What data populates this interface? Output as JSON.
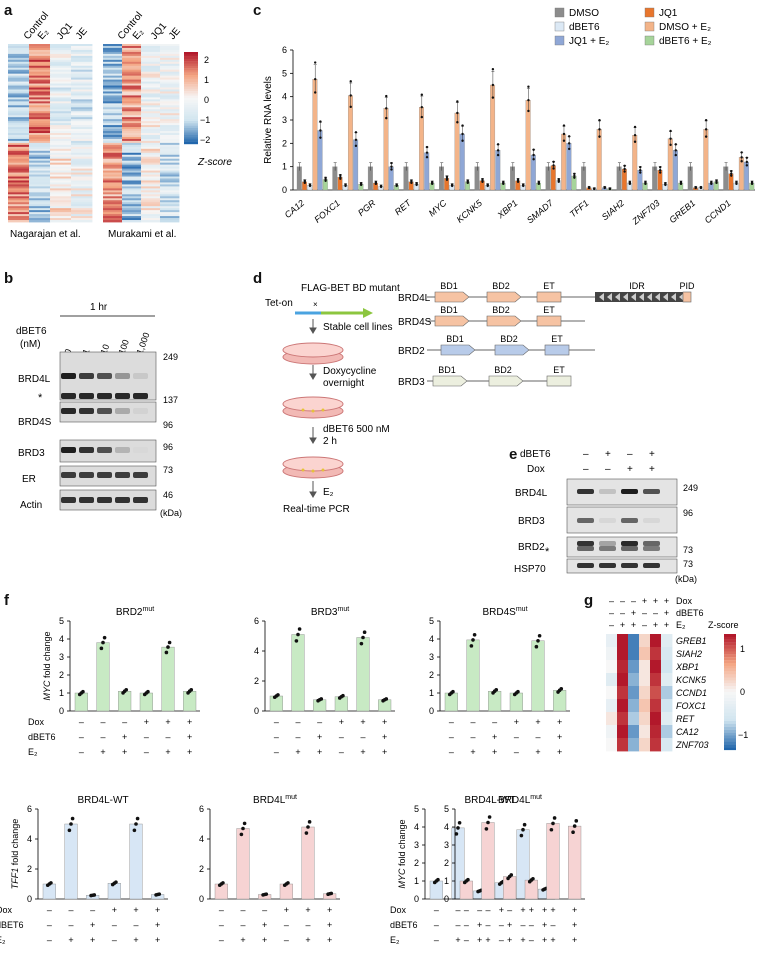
{
  "panels": {
    "a": "a",
    "b": "b",
    "c": "c",
    "d": "d",
    "e": "e",
    "f": "f",
    "g": "g"
  },
  "panel_a": {
    "left_cols": [
      "Control",
      "E₂",
      "JQ1",
      "JE"
    ],
    "right_cols": [
      "Control",
      "E₂",
      "JQ1",
      "JE"
    ],
    "left_caption": "Nagarajan et al.",
    "right_caption": "Murakami et al.",
    "colorbar_ticks": [
      "2",
      "1",
      "0",
      "−1",
      "−2"
    ],
    "colorbar_title": "Z-score"
  },
  "panel_b": {
    "time": "1 hr",
    "treatment": "dBET6",
    "unit": "(nM)",
    "doses": [
      "0",
      "1",
      "10",
      "100",
      "1,000"
    ],
    "rows": [
      "BRD4L",
      "*",
      "BRD4S",
      "BRD3",
      "ER",
      "Actin"
    ],
    "markers": [
      "249",
      "137",
      "96",
      "96",
      "73",
      "46"
    ],
    "kda": "(kDa)"
  },
  "panel_c": {
    "legend": [
      "DMSO",
      "JQ1",
      "dBET6",
      "DMSO + E₂",
      "JQ1 + E₂",
      "dBET6 + E₂"
    ],
    "colors": [
      "#8c8c8c",
      "#e8762d",
      "#dce9f5",
      "#f3b489",
      "#8fa7d6",
      "#a6d49a"
    ]
  },
  "chart_data": [
    {
      "type": "bar",
      "panel": "c",
      "ylabel": "Relative RNA levels",
      "ylim": [
        0,
        6
      ],
      "yticks": [
        "0",
        "1",
        "2",
        "3",
        "4",
        "5",
        "6"
      ],
      "categories": [
        "CA12",
        "FOXC1",
        "PGR",
        "RET",
        "MYC",
        "KCNK5",
        "XBP1",
        "SMAD7",
        "TFF1",
        "SIAH2",
        "ZNF703",
        "GREB1",
        "CCND1"
      ],
      "series": [
        {
          "name": "DMSO",
          "values": [
            1,
            1,
            1,
            1,
            1,
            1,
            1,
            1,
            1,
            1,
            1,
            1,
            1
          ]
        },
        {
          "name": "JQ1",
          "values": [
            0.35,
            0.55,
            0.3,
            0.35,
            0.5,
            0.4,
            0.4,
            1.05,
            0.1,
            0.9,
            0.85,
            0.1,
            0.7
          ]
        },
        {
          "name": "dBET6",
          "values": [
            0.2,
            0.2,
            0.15,
            0.25,
            0.2,
            0.2,
            0.2,
            0.4,
            0.05,
            0.3,
            0.25,
            0.1,
            0.3
          ]
        },
        {
          "name": "DMSO + E₂",
          "values": [
            4.75,
            4.05,
            3.5,
            3.55,
            3.3,
            4.5,
            3.85,
            2.4,
            2.6,
            2.35,
            2.2,
            2.6,
            1.4
          ]
        },
        {
          "name": "JQ1 + E₂",
          "values": [
            2.55,
            2.15,
            1.0,
            1.6,
            2.4,
            1.7,
            1.5,
            2.0,
            0.1,
            0.85,
            1.7,
            0.3,
            1.2
          ]
        },
        {
          "name": "dBET6 + E₂",
          "values": [
            0.45,
            0.25,
            0.2,
            0.3,
            0.35,
            0.3,
            0.3,
            0.6,
            0.05,
            0.3,
            0.3,
            0.35,
            0.3
          ]
        }
      ]
    },
    {
      "type": "bar",
      "panel": "f",
      "title": "BRD2mut",
      "ylabel": "MYC fold change",
      "ylim": [
        0,
        5
      ],
      "categories": [
        "1",
        "2",
        "3",
        "4",
        "5",
        "6"
      ],
      "values": [
        1.0,
        3.8,
        1.1,
        1.0,
        3.55,
        1.1
      ]
    },
    {
      "type": "bar",
      "panel": "f",
      "title": "BRD3mut",
      "ylim": [
        0,
        6
      ],
      "categories": [
        "1",
        "2",
        "3",
        "4",
        "5",
        "6"
      ],
      "values": [
        1.0,
        5.1,
        0.75,
        0.95,
        4.9,
        0.75
      ]
    },
    {
      "type": "bar",
      "panel": "f",
      "title": "BRD4Smut",
      "ylim": [
        0,
        5
      ],
      "categories": [
        "1",
        "2",
        "3",
        "4",
        "5",
        "6"
      ],
      "values": [
        1.0,
        3.95,
        1.1,
        1.0,
        3.9,
        1.15
      ]
    },
    {
      "type": "bar",
      "panel": "f",
      "title": "BRD4L-WT",
      "ylabel": "TFF1 fold change",
      "ylim": [
        0,
        6
      ],
      "categories": [
        "1",
        "2",
        "3",
        "4",
        "5",
        "6"
      ],
      "values": [
        1.0,
        5.0,
        0.25,
        1.05,
        5.0,
        0.3
      ]
    },
    {
      "type": "bar",
      "panel": "f",
      "title": "BRD4Lmut",
      "ylim": [
        0,
        6
      ],
      "categories": [
        "1",
        "2",
        "3",
        "4",
        "5",
        "6"
      ],
      "values": [
        1.0,
        4.7,
        0.3,
        1.0,
        4.8,
        0.35
      ]
    },
    {
      "type": "bar",
      "panel": "f",
      "title": "BRD4L-WT",
      "ylabel": "MYC fold change",
      "ylim": [
        0,
        5
      ],
      "categories": [
        "1",
        "2",
        "3",
        "4",
        "5",
        "6"
      ],
      "values": [
        1.0,
        3.95,
        0.45,
        0.9,
        3.85,
        0.55
      ]
    },
    {
      "type": "bar",
      "panel": "f",
      "title": "BRD4Lmut",
      "ylim": [
        0,
        5
      ],
      "categories": [
        "1",
        "2",
        "3",
        "4",
        "5",
        "6"
      ],
      "values": [
        1.0,
        4.25,
        1.25,
        1.05,
        4.2,
        4.05
      ]
    }
  ],
  "panel_d": {
    "construct": "FLAG-BET BD mutant",
    "teton": "Tet-on",
    "steps": [
      "Stable cell lines",
      "Doxycycline",
      "overnight",
      "dBET6 500 nM",
      "2 h",
      "E₂",
      "Real-time PCR"
    ],
    "proteins": [
      {
        "name": "BRD4L",
        "domains": [
          "BD1",
          "BD2",
          "ET",
          "IDR",
          "PID"
        ]
      },
      {
        "name": "BRD4S",
        "domains": [
          "BD1",
          "BD2",
          "ET"
        ]
      },
      {
        "name": "BRD2",
        "domains": [
          "BD1",
          "BD2",
          "ET"
        ]
      },
      {
        "name": "BRD3",
        "domains": [
          "BD1",
          "BD2",
          "ET"
        ]
      }
    ]
  },
  "panel_e": {
    "rows_label": [
      "dBET6",
      "Dox"
    ],
    "dBET6": [
      "–",
      "+",
      "–",
      "+"
    ],
    "Dox": [
      "–",
      "–",
      "+",
      "+"
    ],
    "blots": [
      "BRD4L",
      "BRD3",
      "BRD2",
      "*",
      "HSP70"
    ],
    "markers": [
      "249",
      "96",
      "73",
      "73"
    ],
    "kda": "(kDa)"
  },
  "panel_f": {
    "titles_top": [
      "BRD2",
      "mut",
      "BRD3",
      "mut",
      "BRD4S",
      "mut"
    ],
    "titles_bottom": [
      "BRD4L-WT",
      "BRD4L",
      "mut",
      "BRD4L-WT",
      "BRD4L",
      "mut"
    ],
    "y_top": [
      "MYC fold change"
    ],
    "y_bottom": [
      "TFF1 fold change",
      "MYC fold change"
    ],
    "cond_labels": [
      "Dox",
      "dBET6",
      "E₂"
    ],
    "dox": [
      "–",
      "–",
      "–",
      "+",
      "+",
      "+"
    ],
    "dbet": [
      "–",
      "–",
      "+",
      "–",
      "–",
      "+"
    ],
    "e2": [
      "–",
      "+",
      "+",
      "–",
      "+",
      "+"
    ]
  },
  "panel_g": {
    "header_rows": [
      {
        "label": "Dox",
        "signs": [
          "–",
          "–",
          "–",
          "+",
          "+",
          "+"
        ]
      },
      {
        "label": "dBET6",
        "signs": [
          "–",
          "–",
          "+",
          "–",
          "–",
          "+"
        ]
      },
      {
        "label": "E₂",
        "signs": [
          "–",
          "+",
          "+",
          "–",
          "+",
          "+"
        ]
      }
    ],
    "genes": [
      "GREB1",
      "SIAH2",
      "XBP1",
      "KCNK5",
      "CCND1",
      "FOXC1",
      "RET",
      "CA12",
      "ZNF703"
    ],
    "colorbar_title": "Z-score",
    "colorbar_ticks": [
      "1",
      "0",
      "−1"
    ]
  }
}
